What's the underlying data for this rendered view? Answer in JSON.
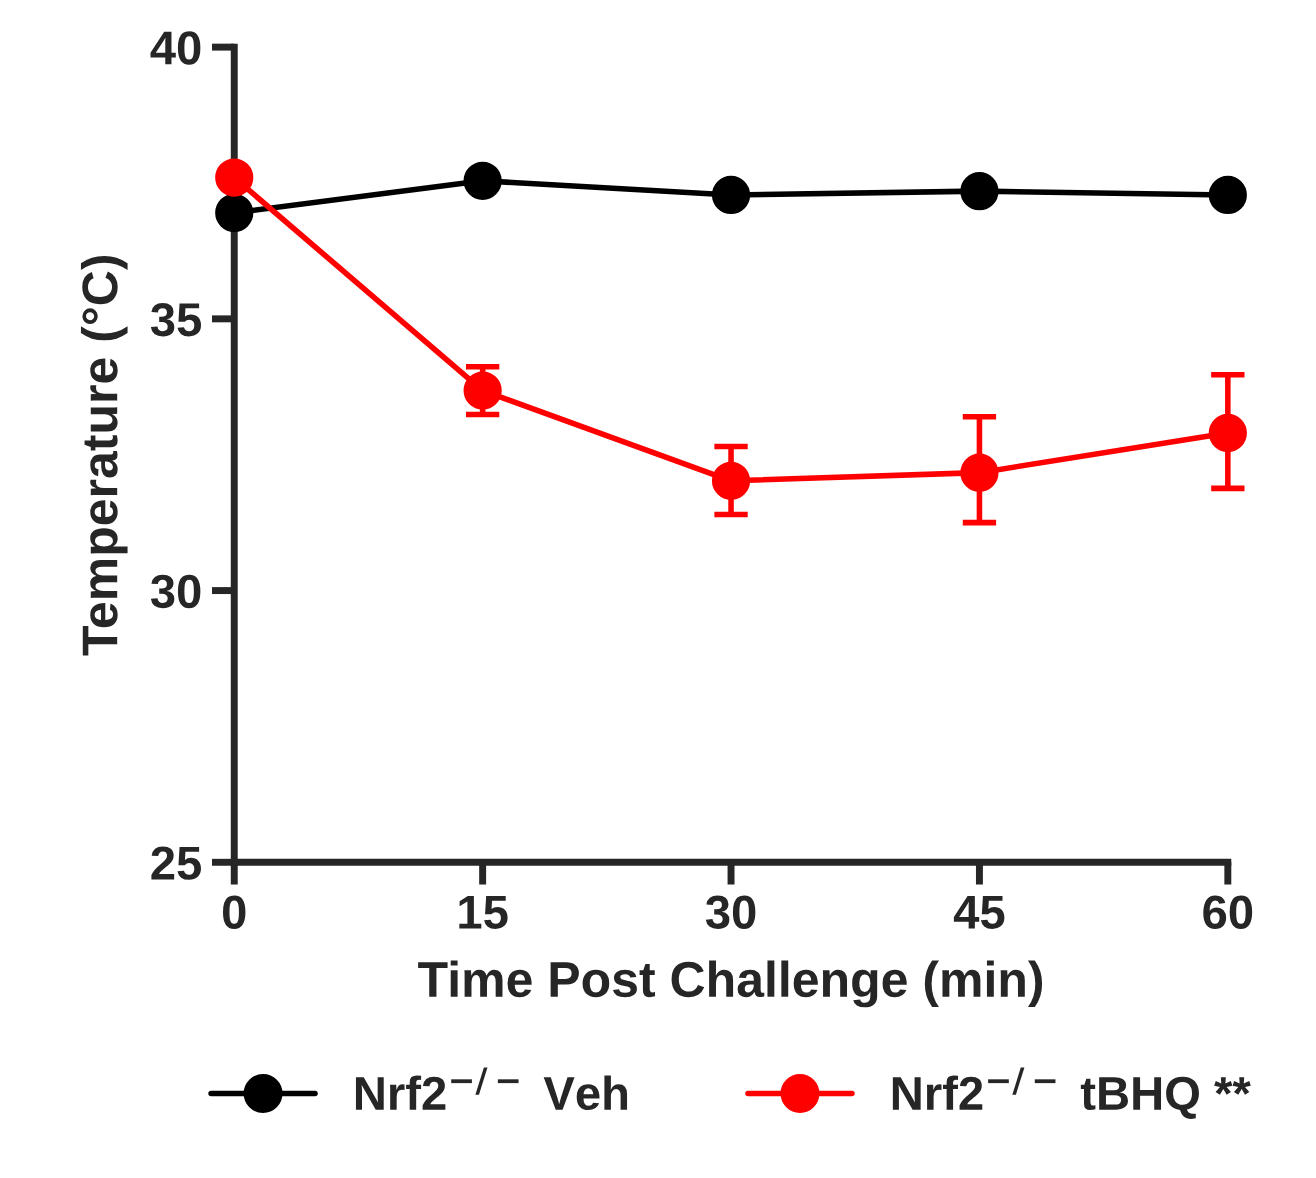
{
  "chart_data": {
    "type": "line",
    "xlabel": "Time Post Challenge (min)",
    "ylabel": "Temperature (°C)",
    "x": [
      0,
      15,
      30,
      45,
      60
    ],
    "series": [
      {
        "name": "Nrf2$^{−/−}$ Veh",
        "color": "#000000",
        "values": [
          36.95,
          37.54,
          37.28,
          37.35,
          37.28
        ]
      },
      {
        "name": "Nrf2$^{−/−}$ tBHQ **",
        "color": "#ff0000",
        "values": [
          37.6,
          33.68,
          32.02,
          32.17,
          32.9
        ],
        "errors": [
          null,
          [
            33.24,
            34.12
          ],
          [
            31.4,
            32.65
          ],
          [
            31.25,
            33.2
          ],
          [
            31.88,
            33.97
          ]
        ]
      }
    ],
    "xlim": [
      0,
      60
    ],
    "xticks": [
      0,
      15,
      30,
      45,
      60
    ],
    "ylim": [
      25,
      40
    ],
    "yticks": [
      25,
      30,
      35,
      40
    ],
    "grid": false,
    "legend": "bottom",
    "marker": "circle",
    "line_style": "solid"
  }
}
